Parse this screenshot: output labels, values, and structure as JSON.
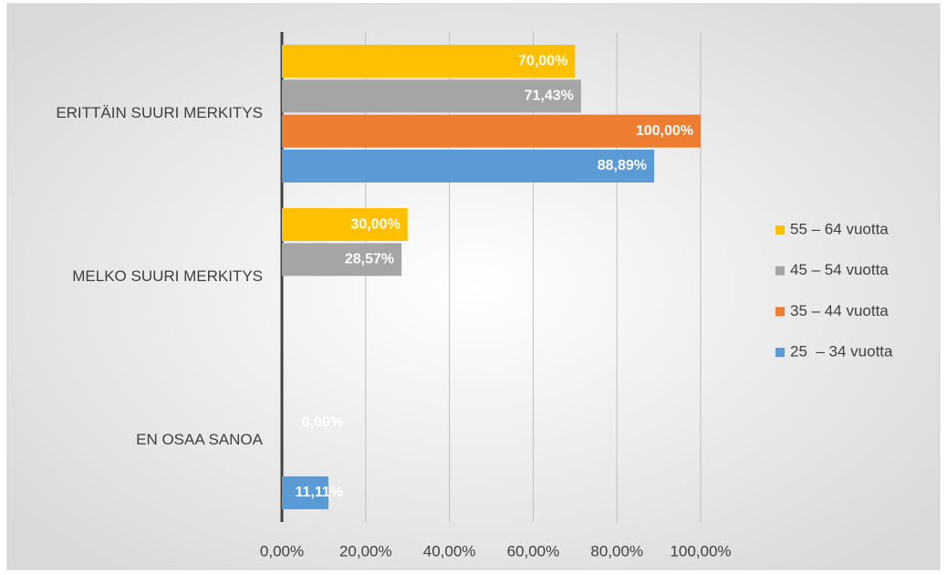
{
  "chart_data": {
    "type": "hbar",
    "categories": [
      "ERITTÄIN SUURI MERKITYS",
      "MELKO SUURI MERKITYS",
      "EN OSAA SANOA"
    ],
    "series": [
      {
        "name": "55 – 64 vuotta",
        "color": "#ffc000",
        "values": [
          70,
          30,
          null
        ],
        "value_labels": [
          "70,00%",
          "30,00%",
          null
        ]
      },
      {
        "name": "45 – 54 vuotta",
        "color": "#a5a5a5",
        "values": [
          71.43,
          28.57,
          0
        ],
        "value_labels": [
          "71,43%",
          "28,57%",
          "0,00%"
        ]
      },
      {
        "name": "35 – 44 vuotta",
        "color": "#ed7d31",
        "values": [
          100,
          null,
          null
        ],
        "value_labels": [
          "100,00%",
          null,
          null
        ]
      },
      {
        "name": "25  – 34 vuotta",
        "color": "#5b9bd5",
        "values": [
          88.89,
          null,
          11.11
        ],
        "value_labels": [
          "88,89%",
          null,
          "11,11%"
        ]
      }
    ],
    "xlim": [
      0,
      100
    ],
    "xticks": [
      {
        "value": 0,
        "label": "0,00%"
      },
      {
        "value": 20,
        "label": "20,00%"
      },
      {
        "value": 40,
        "label": "40,00%"
      },
      {
        "value": 60,
        "label": "60,00%"
      },
      {
        "value": 80,
        "label": "80,00%"
      },
      {
        "value": 100,
        "label": "100,00%"
      }
    ],
    "grid": true,
    "legend": "right"
  }
}
